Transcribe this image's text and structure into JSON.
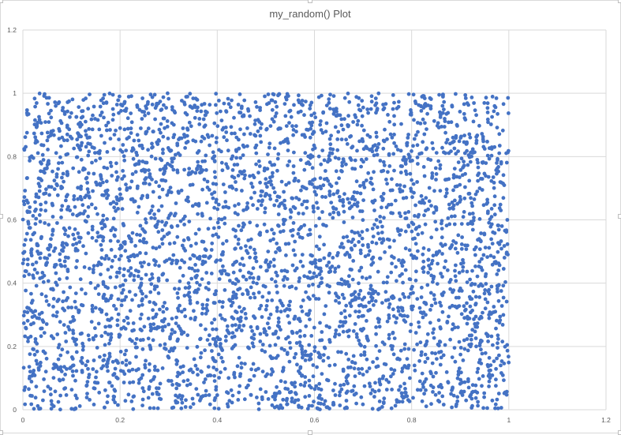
{
  "chart_data": {
    "type": "scatter",
    "title": "my_random() Plot",
    "xlabel": "",
    "ylabel": "",
    "xlim": [
      0,
      1.2
    ],
    "ylim": [
      0,
      1.2
    ],
    "x_ticks": [
      "0",
      "0.2",
      "0.4",
      "0.6",
      "0.8",
      "1",
      "1.2"
    ],
    "y_ticks": [
      "0",
      "0.2",
      "0.4",
      "0.6",
      "0.8",
      "1",
      "1.2"
    ],
    "grid": true,
    "legend": "none",
    "marker_color": "#4472C4",
    "series": [
      {
        "points_summary": {
          "count": 4000,
          "distribution": "uniform",
          "x_range": [
            0,
            1
          ],
          "y_range": [
            0,
            1
          ]
        }
      }
    ]
  }
}
